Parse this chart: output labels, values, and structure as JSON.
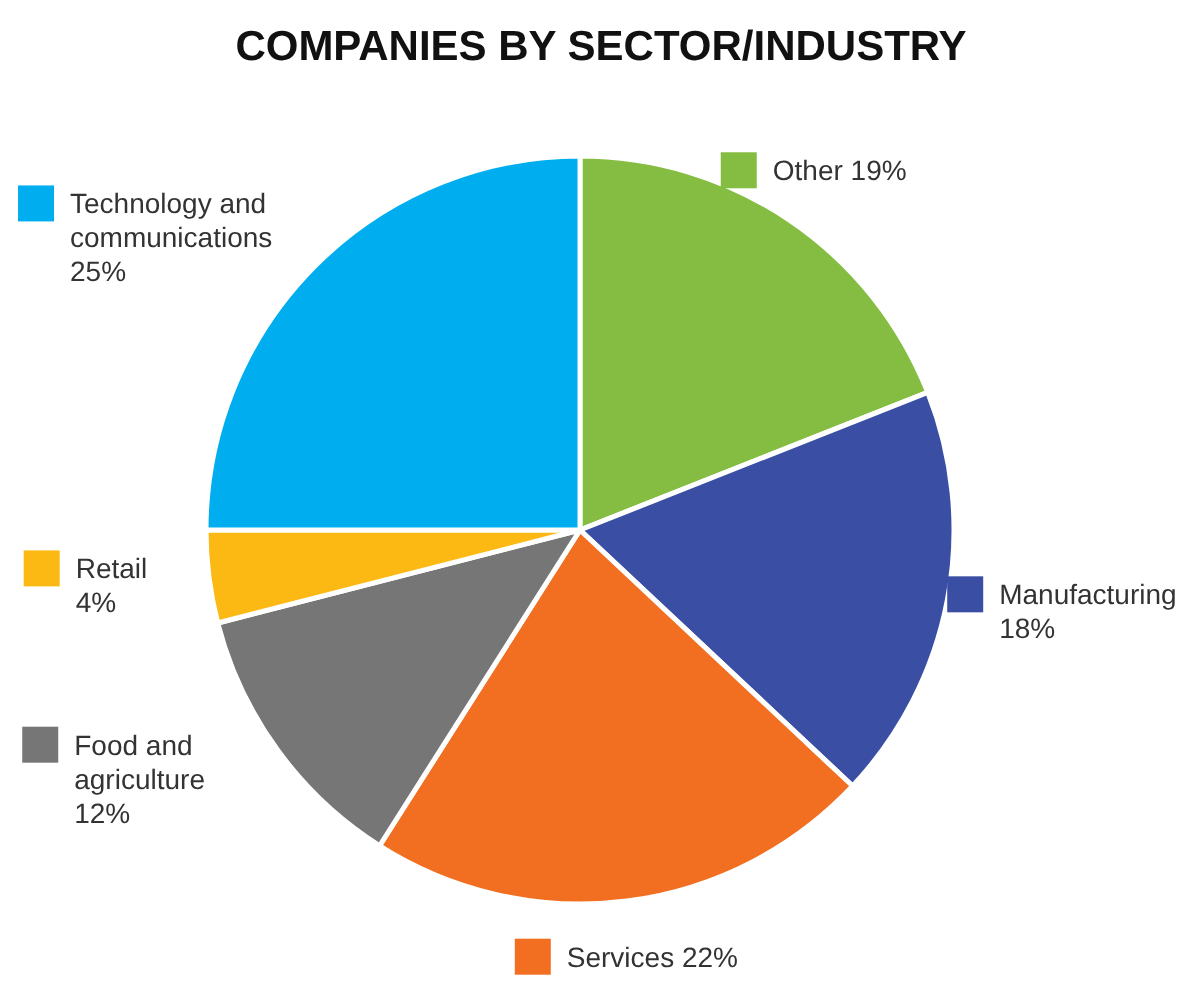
{
  "chart_data": {
    "type": "pie",
    "title": "COMPANIES BY SECTOR/INDUSTRY",
    "categories": [
      "Other",
      "Manufacturing",
      "Services",
      "Food and agriculture",
      "Retail",
      "Technology and communications"
    ],
    "values": [
      19,
      18,
      22,
      12,
      4,
      25
    ],
    "value_labels": [
      "19%",
      "18%",
      "22%",
      "12%",
      "4%",
      "25%"
    ],
    "colors": [
      "#84bd41",
      "#3a4fa3",
      "#f26f21",
      "#767676",
      "#fdb913",
      "#00aeef"
    ],
    "legend": true
  }
}
